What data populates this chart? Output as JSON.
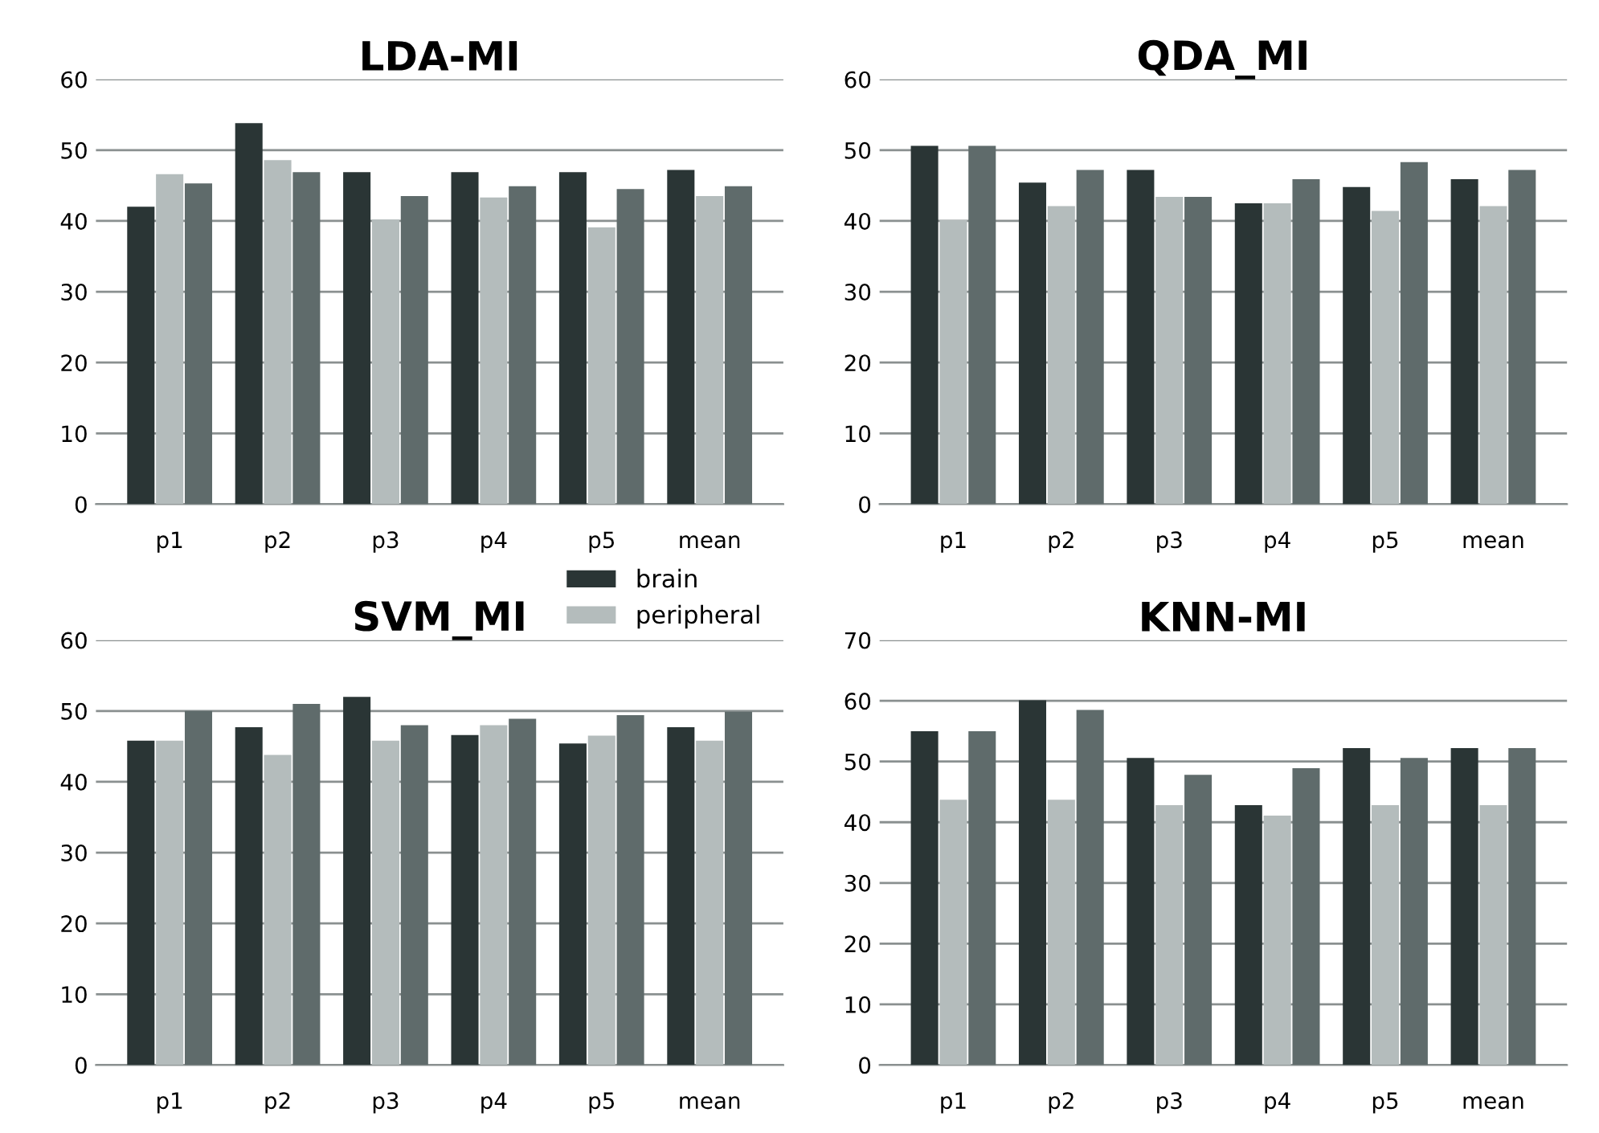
{
  "chart_data": [
    {
      "type": "bar",
      "title": "LDA-MI",
      "categories": [
        "p1",
        "p2",
        "p3",
        "p4",
        "p5",
        "mean"
      ],
      "ylim": [
        0,
        60
      ],
      "yticks": [
        0,
        10,
        20,
        30,
        40,
        50,
        60
      ],
      "grid": "y",
      "series": [
        {
          "color": "#2a3535",
          "values": [
            42.0,
            53.8,
            46.9,
            46.9,
            46.9,
            47.2
          ]
        },
        {
          "color": "#b4bcbc",
          "values": [
            46.6,
            48.6,
            40.2,
            43.3,
            39.1,
            43.5
          ]
        },
        {
          "color": "#5f6b6b",
          "values": [
            45.3,
            46.9,
            43.5,
            44.9,
            44.5,
            44.9
          ]
        }
      ]
    },
    {
      "type": "bar",
      "title": "QDA_MI",
      "categories": [
        "p1",
        "p2",
        "p3",
        "p4",
        "p5",
        "mean"
      ],
      "ylim": [
        0,
        60
      ],
      "yticks": [
        0,
        10,
        20,
        30,
        40,
        50,
        60
      ],
      "grid": "y",
      "series": [
        {
          "color": "#2a3535",
          "values": [
            50.6,
            45.4,
            47.2,
            42.5,
            44.8,
            45.9
          ]
        },
        {
          "color": "#b4bcbc",
          "values": [
            40.1,
            42.1,
            43.4,
            42.5,
            41.4,
            42.1
          ]
        },
        {
          "color": "#5f6b6b",
          "values": [
            50.6,
            47.2,
            43.4,
            45.9,
            48.3,
            47.2
          ]
        }
      ]
    },
    {
      "type": "bar",
      "title": "SVM_MI",
      "categories": [
        "p1",
        "p2",
        "p3",
        "p4",
        "p5",
        "mean"
      ],
      "ylim": [
        0,
        60
      ],
      "yticks": [
        0,
        10,
        20,
        30,
        40,
        50,
        60
      ],
      "grid": "y",
      "legend": "top right",
      "series": [
        {
          "name": "brain",
          "color": "#2a3535",
          "values": [
            45.8,
            47.7,
            52.0,
            46.6,
            45.4,
            47.7
          ]
        },
        {
          "name": "peripheral",
          "color": "#b4bcbc",
          "values": [
            45.8,
            43.8,
            45.8,
            48.0,
            46.5,
            45.8
          ]
        },
        {
          "color": "#5f6b6b",
          "values": [
            50.0,
            51.0,
            48.0,
            48.9,
            49.4,
            49.9
          ]
        }
      ]
    },
    {
      "type": "bar",
      "title": "KNN-MI",
      "categories": [
        "p1",
        "p2",
        "p3",
        "p4",
        "p5",
        "mean"
      ],
      "ylim": [
        0,
        70
      ],
      "yticks": [
        0,
        10,
        20,
        30,
        40,
        50,
        60,
        70
      ],
      "grid": "y",
      "series": [
        {
          "color": "#2a3535",
          "values": [
            55.0,
            60.1,
            50.6,
            42.8,
            52.2,
            52.2
          ]
        },
        {
          "color": "#b4bcbc",
          "values": [
            43.7,
            43.7,
            42.8,
            41.1,
            42.8,
            42.8
          ]
        },
        {
          "color": "#5f6b6b",
          "values": [
            55.0,
            58.5,
            47.8,
            48.9,
            50.6,
            52.2
          ]
        }
      ]
    }
  ]
}
